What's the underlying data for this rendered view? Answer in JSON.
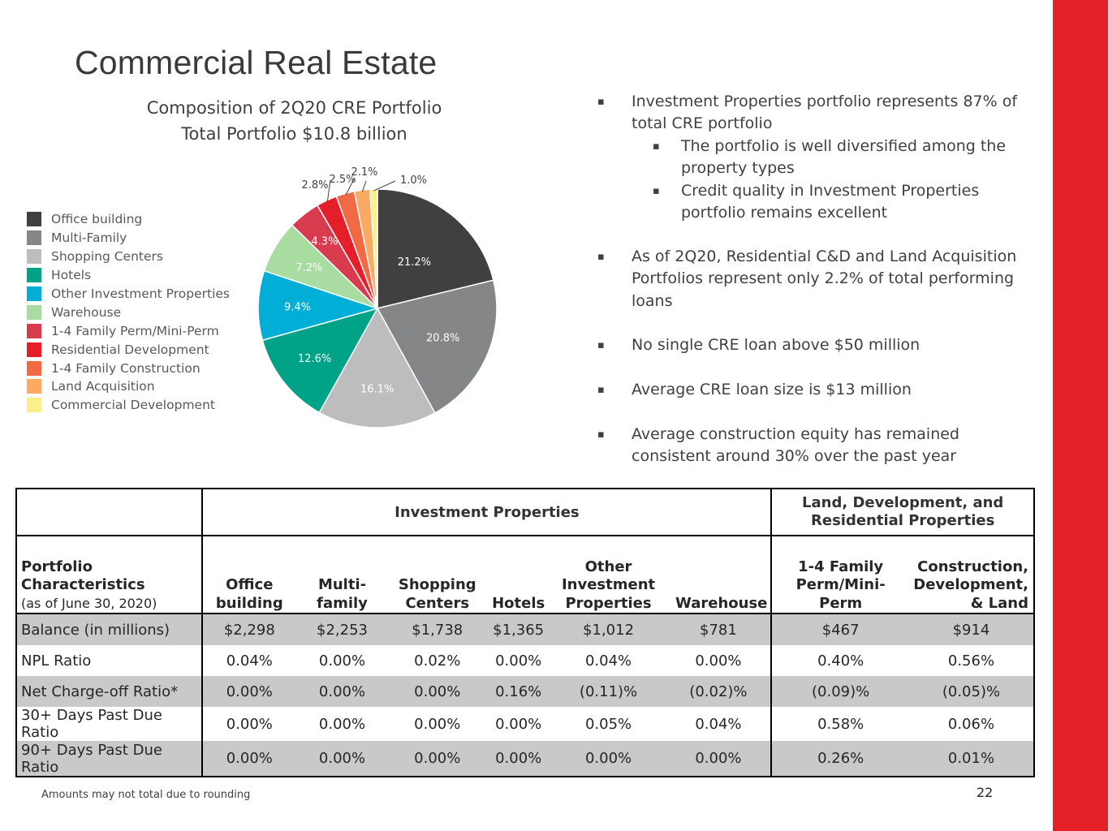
{
  "header": {
    "title": "Commercial Real Estate"
  },
  "chart_data": {
    "type": "pie",
    "title": "Composition of 2Q20 CRE Portfolio",
    "subtitle": "Total Portfolio $10.8 billion",
    "slices": [
      {
        "label": "Office building",
        "value": 21.2,
        "display": "21.2%",
        "color": "#404040"
      },
      {
        "label": "Multi-Family",
        "value": 20.8,
        "display": "20.8%",
        "color": "#848687"
      },
      {
        "label": "Shopping Centers",
        "value": 16.1,
        "display": "16.1%",
        "color": "#bdbdbd"
      },
      {
        "label": "Hotels",
        "value": 12.6,
        "display": "12.6%",
        "color": "#00a388"
      },
      {
        "label": "Other Investment Properties",
        "value": 9.4,
        "display": "9.4%",
        "color": "#00aed6"
      },
      {
        "label": "Warehouse",
        "value": 7.2,
        "display": "7.2%",
        "color": "#a8dca0"
      },
      {
        "label": "1-4 Family Perm/Mini-Perm",
        "value": 4.3,
        "display": "4.3%",
        "color": "#d83a4e"
      },
      {
        "label": "Residential Development",
        "value": 2.8,
        "display": "2.8%",
        "color": "#e41f2a"
      },
      {
        "label": "1-4 Family Construction",
        "value": 2.5,
        "display": "2.5%",
        "color": "#f26a44"
      },
      {
        "label": "Land Acquisition",
        "value": 2.1,
        "display": "2.1%",
        "color": "#fbaa63"
      },
      {
        "label": "Commercial Development",
        "value": 1.0,
        "display": "1.0%",
        "color": "#fdf08a"
      }
    ],
    "legend_position": "left"
  },
  "bullets": [
    {
      "text": "Investment Properties portfolio represents 87% of total CRE portfolio",
      "level": 1
    },
    {
      "text": "The portfolio is well diversified among the property types",
      "level": 2
    },
    {
      "text": "Credit quality in Investment Properties portfolio remains excellent",
      "level": 2
    },
    {
      "text": "As of 2Q20, Residential C&D and Land Acquisition Portfolios represent only 2.2% of total performing loans",
      "level": 1
    },
    {
      "text": "No single CRE loan above $50 million",
      "level": 1
    },
    {
      "text": "Average CRE loan size is $13 million",
      "level": 1
    },
    {
      "text": "Average construction equity has remained consistent around 30% over the past year",
      "level": 1
    }
  ],
  "bullet_mark": "▪",
  "table": {
    "group_investment": "Investment Properties",
    "group_land": "Land, Development, and Residential Properties",
    "characteristics_label": "Portfolio Characteristics",
    "as_of": "(as of June 30, 2020)",
    "columns": [
      "Office building",
      "Multi-family",
      "Shopping Centers",
      "Hotels",
      "Other Investment Properties",
      "Warehouse",
      "1-4 Family Perm/Mini-Perm",
      "Construction, Development, & Land"
    ],
    "rows": [
      {
        "label": "Balance (in millions)",
        "values": [
          "$2,298",
          "$2,253",
          "$1,738",
          "$1,365",
          "$1,012",
          "$781",
          "$467",
          "$914"
        ]
      },
      {
        "label": "NPL Ratio",
        "values": [
          "0.04%",
          "0.00%",
          "0.02%",
          "0.00%",
          "0.04%",
          "0.00%",
          "0.40%",
          "0.56%"
        ]
      },
      {
        "label": "Net Charge-off Ratio*",
        "values": [
          "0.00%",
          "0.00%",
          "0.00%",
          "0.16%",
          "(0.11)%",
          "(0.02)%",
          "(0.09)%",
          "(0.05)%"
        ]
      },
      {
        "label": "30+ Days Past Due Ratio",
        "values": [
          "0.00%",
          "0.00%",
          "0.00%",
          "0.00%",
          "0.05%",
          "0.04%",
          "0.58%",
          "0.06%"
        ]
      },
      {
        "label": "90+ Days Past Due Ratio",
        "values": [
          "0.00%",
          "0.00%",
          "0.00%",
          "0.00%",
          "0.00%",
          "0.00%",
          "0.26%",
          "0.01%"
        ]
      }
    ]
  },
  "footer": {
    "note": "Amounts may not total due to rounding",
    "page_number": "22"
  },
  "colors": {
    "accent": "#e42127",
    "row_shade": "#c9c9c9"
  }
}
